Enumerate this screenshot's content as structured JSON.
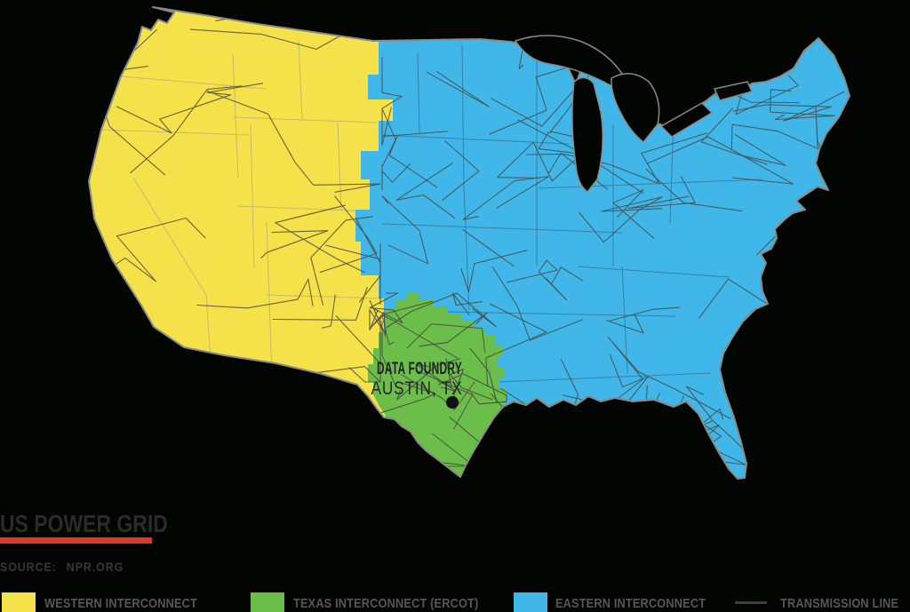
{
  "title": {
    "text": "US POWER GRID"
  },
  "source": {
    "label": "SOURCE:",
    "value": "NPR.ORG"
  },
  "accent": {
    "underline_color": "#D83B26"
  },
  "map": {
    "annotation": {
      "line1": "DATA FOUNDRY",
      "line2": "AUSTIN, TX"
    },
    "marker": {
      "name": "austin-location-dot",
      "color": "#111111"
    },
    "regions": {
      "western": {
        "name": "Western Interconnect",
        "color": "#F5E149"
      },
      "texas": {
        "name": "Texas Interconnect (ERCOT)",
        "color": "#6CBE4B"
      },
      "eastern": {
        "name": "Eastern Interconnect",
        "color": "#41B6E8"
      }
    },
    "coast_color": "#8A8A84",
    "transmission_line_color": "#45453D",
    "west_state_line_color": "#9A9A8C",
    "east_state_line_color": "#37789C",
    "water_color": "#020502"
  },
  "legend": {
    "items": [
      {
        "label": "WESTERN INTERCONNECT",
        "color": "#F5E149",
        "type": "swatch"
      },
      {
        "label": "TEXAS INTERCONNECT (ERCOT)",
        "color": "#6CBE4B",
        "type": "swatch"
      },
      {
        "label": "EASTERN INTERCONNECT",
        "color": "#41B6E8",
        "type": "swatch"
      },
      {
        "label": "TRANSMISSION LINE",
        "color": "#3F3F3A",
        "type": "line"
      }
    ]
  }
}
